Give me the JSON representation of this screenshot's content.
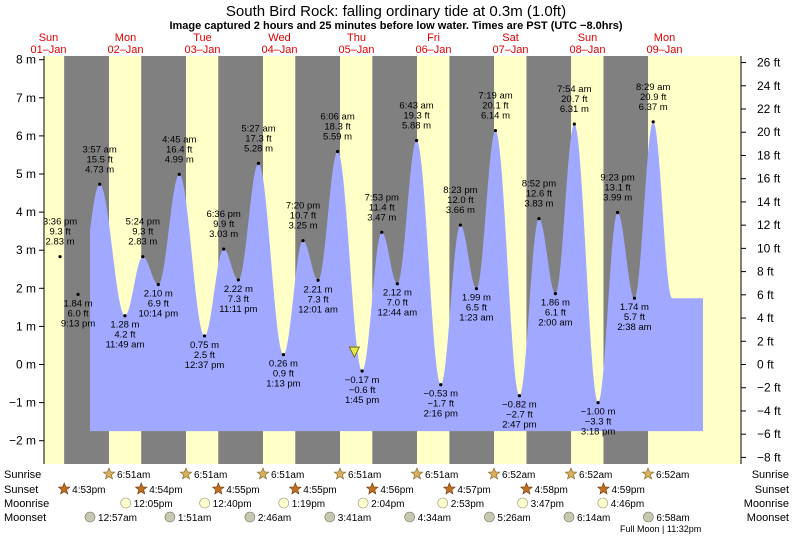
{
  "chart_data": {
    "type": "area",
    "title": "South Bird Rock: falling  ordinary tide at 0.3m (1.0ft)",
    "subtitle": "Image captured 2 hours and 25 minutes before low water. Times are PST (UTC −8.0hrs)",
    "ylim_m": [
      -2.25,
      8.25
    ],
    "y_ticks_m": [
      -2,
      -1,
      0,
      1,
      2,
      3,
      4,
      5,
      6,
      7,
      8
    ],
    "y_ticks_m_labels": [
      "−2 m",
      "−1 m",
      "0 m",
      "1 m",
      "2 m",
      "3 m",
      "4 m",
      "5 m",
      "6 m",
      "7 m",
      "8 m"
    ],
    "y_ticks_ft": [
      -8,
      -6,
      -4,
      -2,
      0,
      2,
      4,
      6,
      8,
      10,
      12,
      14,
      16,
      18,
      20,
      22,
      24,
      26
    ],
    "y_ticks_ft_labels": [
      "−8 ft",
      "−6 ft",
      "−4 ft",
      "−2 ft",
      "0 ft",
      "2 ft",
      "4 ft",
      "6 ft",
      "8 ft",
      "10 ft",
      "12 ft",
      "14 ft",
      "16 ft",
      "18 ft",
      "20 ft",
      "22 ft",
      "24 ft",
      "26 ft"
    ],
    "days": [
      {
        "dow": "Sun",
        "date": "01–Jan"
      },
      {
        "dow": "Mon",
        "date": "02–Jan"
      },
      {
        "dow": "Tue",
        "date": "03–Jan"
      },
      {
        "dow": "Wed",
        "date": "04–Jan"
      },
      {
        "dow": "Thu",
        "date": "05–Jan"
      },
      {
        "dow": "Fri",
        "date": "06–Jan"
      },
      {
        "dow": "Sat",
        "date": "07–Jan"
      },
      {
        "dow": "Sun",
        "date": "08–Jan"
      },
      {
        "dow": "Mon",
        "date": "09–Jan"
      }
    ],
    "tide_events": [
      {
        "day": 0,
        "time_h": 15.6,
        "m": 2.83,
        "ft": "9.3 ft",
        "time": "3:36 pm",
        "hm": "2.83 m",
        "type": "high"
      },
      {
        "day": 0,
        "time_h": 21.22,
        "m": 1.84,
        "ft": "6.0 ft",
        "time": "9:13 pm",
        "hm": "1.84 m",
        "type": "low"
      },
      {
        "day": 1,
        "time_h": 3.95,
        "m": 4.73,
        "ft": "15.5 ft",
        "time": "3:57 am",
        "hm": "4.73 m",
        "type": "high"
      },
      {
        "day": 1,
        "time_h": 11.82,
        "m": 1.28,
        "ft": "4.2 ft",
        "time": "11:49 am",
        "hm": "1.28 m",
        "type": "low"
      },
      {
        "day": 1,
        "time_h": 17.4,
        "m": 2.83,
        "ft": "9.3 ft",
        "time": "5:24 pm",
        "hm": "2.83 m",
        "type": "high"
      },
      {
        "day": 1,
        "time_h": 22.23,
        "m": 2.1,
        "ft": "6.9 ft",
        "time": "10:14 pm",
        "hm": "2.10 m",
        "type": "low"
      },
      {
        "day": 2,
        "time_h": 4.75,
        "m": 4.99,
        "ft": "16.4 ft",
        "time": "4:45 am",
        "hm": "4.99 m",
        "type": "high"
      },
      {
        "day": 2,
        "time_h": 12.62,
        "m": 0.75,
        "ft": "2.5 ft",
        "time": "12:37 pm",
        "hm": "0.75 m",
        "type": "low"
      },
      {
        "day": 2,
        "time_h": 18.6,
        "m": 3.03,
        "ft": "9.9 ft",
        "time": "6:36 pm",
        "hm": "3.03 m",
        "type": "high"
      },
      {
        "day": 2,
        "time_h": 23.18,
        "m": 2.22,
        "ft": "7.3 ft",
        "time": "11:11 pm",
        "hm": "2.22 m",
        "type": "low"
      },
      {
        "day": 3,
        "time_h": 5.45,
        "m": 5.28,
        "ft": "17.3 ft",
        "time": "5:27 am",
        "hm": "5.28 m",
        "type": "high"
      },
      {
        "day": 3,
        "time_h": 13.22,
        "m": 0.26,
        "ft": "0.9 ft",
        "time": "1:13 pm",
        "hm": "0.26 m",
        "type": "low"
      },
      {
        "day": 3,
        "time_h": 19.33,
        "m": 3.25,
        "ft": "10.7 ft",
        "time": "7:20 pm",
        "hm": "3.25 m",
        "type": "high"
      },
      {
        "day": 4,
        "time_h": 0.02,
        "m": 2.21,
        "ft": "7.3 ft",
        "time": "12:01 am",
        "hm": "2.21 m",
        "type": "low"
      },
      {
        "day": 4,
        "time_h": 6.1,
        "m": 5.59,
        "ft": "18.3 ft",
        "time": "6:06 am",
        "hm": "5.59 m",
        "type": "high"
      },
      {
        "day": 4,
        "time_h": 13.75,
        "m": -0.17,
        "ft": "−0.6 ft",
        "time": "1:45 pm",
        "hm": "−0.17 m",
        "type": "low"
      },
      {
        "day": 4,
        "time_h": 19.88,
        "m": 3.47,
        "ft": "11.4 ft",
        "time": "7:53 pm",
        "hm": "3.47 m",
        "type": "high"
      },
      {
        "day": 5,
        "time_h": 0.73,
        "m": 2.12,
        "ft": "7.0 ft",
        "time": "12:44 am",
        "hm": "2.12 m",
        "type": "low"
      },
      {
        "day": 5,
        "time_h": 6.72,
        "m": 5.88,
        "ft": "19.3 ft",
        "time": "6:43 am",
        "hm": "5.88 m",
        "type": "high"
      },
      {
        "day": 5,
        "time_h": 14.27,
        "m": -0.53,
        "ft": "−1.7 ft",
        "time": "2:16 pm",
        "hm": "−0.53 m",
        "type": "low"
      },
      {
        "day": 5,
        "time_h": 20.38,
        "m": 3.66,
        "ft": "12.0 ft",
        "time": "8:23 pm",
        "hm": "3.66 m",
        "type": "high"
      },
      {
        "day": 6,
        "time_h": 1.38,
        "m": 1.99,
        "ft": "6.5 ft",
        "time": "1:23 am",
        "hm": "1.99 m",
        "type": "low"
      },
      {
        "day": 6,
        "time_h": 7.32,
        "m": 6.14,
        "ft": "20.1 ft",
        "time": "7:19 am",
        "hm": "6.14 m",
        "type": "high"
      },
      {
        "day": 6,
        "time_h": 14.78,
        "m": -0.82,
        "ft": "−2.7 ft",
        "time": "2:47 pm",
        "hm": "−0.82 m",
        "type": "low"
      },
      {
        "day": 6,
        "time_h": 20.87,
        "m": 3.83,
        "ft": "12.6 ft",
        "time": "8:52 pm",
        "hm": "3.83 m",
        "type": "high"
      },
      {
        "day": 7,
        "time_h": 2.0,
        "m": 1.86,
        "ft": "6.1 ft",
        "time": "2:00 am",
        "hm": "1.86 m",
        "type": "low"
      },
      {
        "day": 7,
        "time_h": 7.9,
        "m": 6.31,
        "ft": "20.7 ft",
        "time": "7:54 am",
        "hm": "6.31 m",
        "type": "high"
      },
      {
        "day": 7,
        "time_h": 15.3,
        "m": -1.0,
        "ft": "−3.3 ft",
        "time": "3:18 pm",
        "hm": "−1.00 m",
        "type": "low"
      },
      {
        "day": 7,
        "time_h": 21.38,
        "m": 3.99,
        "ft": "13.1 ft",
        "time": "9:23 pm",
        "hm": "3.99 m",
        "type": "high"
      },
      {
        "day": 8,
        "time_h": 2.63,
        "m": 1.74,
        "ft": "5.7 ft",
        "time": "2:38 am",
        "hm": "1.74 m",
        "type": "low"
      },
      {
        "day": 8,
        "time_h": 8.48,
        "m": 6.37,
        "ft": "20.9 ft",
        "time": "8:29 am",
        "hm": "6.37 m",
        "type": "high"
      }
    ],
    "current_level_m": 0.3,
    "current_time": {
      "day": 4,
      "time_h": 11.33
    },
    "sunrise": [
      {
        "day": 1,
        "time_h": 6.85,
        "time": "6:51am"
      },
      {
        "day": 2,
        "time_h": 6.85,
        "time": "6:51am"
      },
      {
        "day": 3,
        "time_h": 6.85,
        "time": "6:51am"
      },
      {
        "day": 4,
        "time_h": 6.85,
        "time": "6:51am"
      },
      {
        "day": 5,
        "time_h": 6.85,
        "time": "6:51am"
      },
      {
        "day": 6,
        "time_h": 6.87,
        "time": "6:52am"
      },
      {
        "day": 7,
        "time_h": 6.87,
        "time": "6:52am"
      },
      {
        "day": 8,
        "time_h": 6.87,
        "time": "6:52am"
      }
    ],
    "sunset": [
      {
        "day": 0,
        "time_h": 16.88,
        "time": "4:53pm"
      },
      {
        "day": 1,
        "time_h": 16.9,
        "time": "4:54pm"
      },
      {
        "day": 2,
        "time_h": 16.92,
        "time": "4:55pm"
      },
      {
        "day": 3,
        "time_h": 16.92,
        "time": "4:55pm"
      },
      {
        "day": 4,
        "time_h": 16.93,
        "time": "4:56pm"
      },
      {
        "day": 5,
        "time_h": 16.95,
        "time": "4:57pm"
      },
      {
        "day": 6,
        "time_h": 16.97,
        "time": "4:58pm"
      },
      {
        "day": 7,
        "time_h": 16.98,
        "time": "4:59pm"
      }
    ],
    "moonrise": [
      {
        "day": 1,
        "time_h": 12.08,
        "time": "12:05pm"
      },
      {
        "day": 2,
        "time_h": 12.67,
        "time": "12:40pm"
      },
      {
        "day": 3,
        "time_h": 13.32,
        "time": "1:19pm"
      },
      {
        "day": 4,
        "time_h": 14.07,
        "time": "2:04pm"
      },
      {
        "day": 5,
        "time_h": 14.88,
        "time": "2:53pm"
      },
      {
        "day": 6,
        "time_h": 15.78,
        "time": "3:47pm"
      },
      {
        "day": 7,
        "time_h": 16.77,
        "time": "4:46pm"
      }
    ],
    "moonset": [
      {
        "day": 1,
        "time_h": 0.95,
        "time": "12:57am"
      },
      {
        "day": 2,
        "time_h": 1.85,
        "time": "1:51am"
      },
      {
        "day": 3,
        "time_h": 2.77,
        "time": "2:46am"
      },
      {
        "day": 4,
        "time_h": 3.68,
        "time": "3:41am"
      },
      {
        "day": 5,
        "time_h": 4.57,
        "time": "4:34am"
      },
      {
        "day": 6,
        "time_h": 5.43,
        "time": "5:26am"
      },
      {
        "day": 7,
        "time_h": 6.23,
        "time": "6:14am"
      },
      {
        "day": 8,
        "time_h": 6.97,
        "time": "6:58am"
      }
    ],
    "row_labels": [
      "Sunrise",
      "Sunset",
      "Moonrise",
      "Moonset"
    ],
    "full_moon_note": "Full Moon | 11:32pm",
    "colors": {
      "day": "#ffffc8",
      "night": "#808080",
      "water": "#a0a8ff",
      "day_label": "#e00000",
      "sun": "#c8a050",
      "moon_rise": "#ffffd0",
      "moon_set": "#c8c8b0"
    }
  }
}
